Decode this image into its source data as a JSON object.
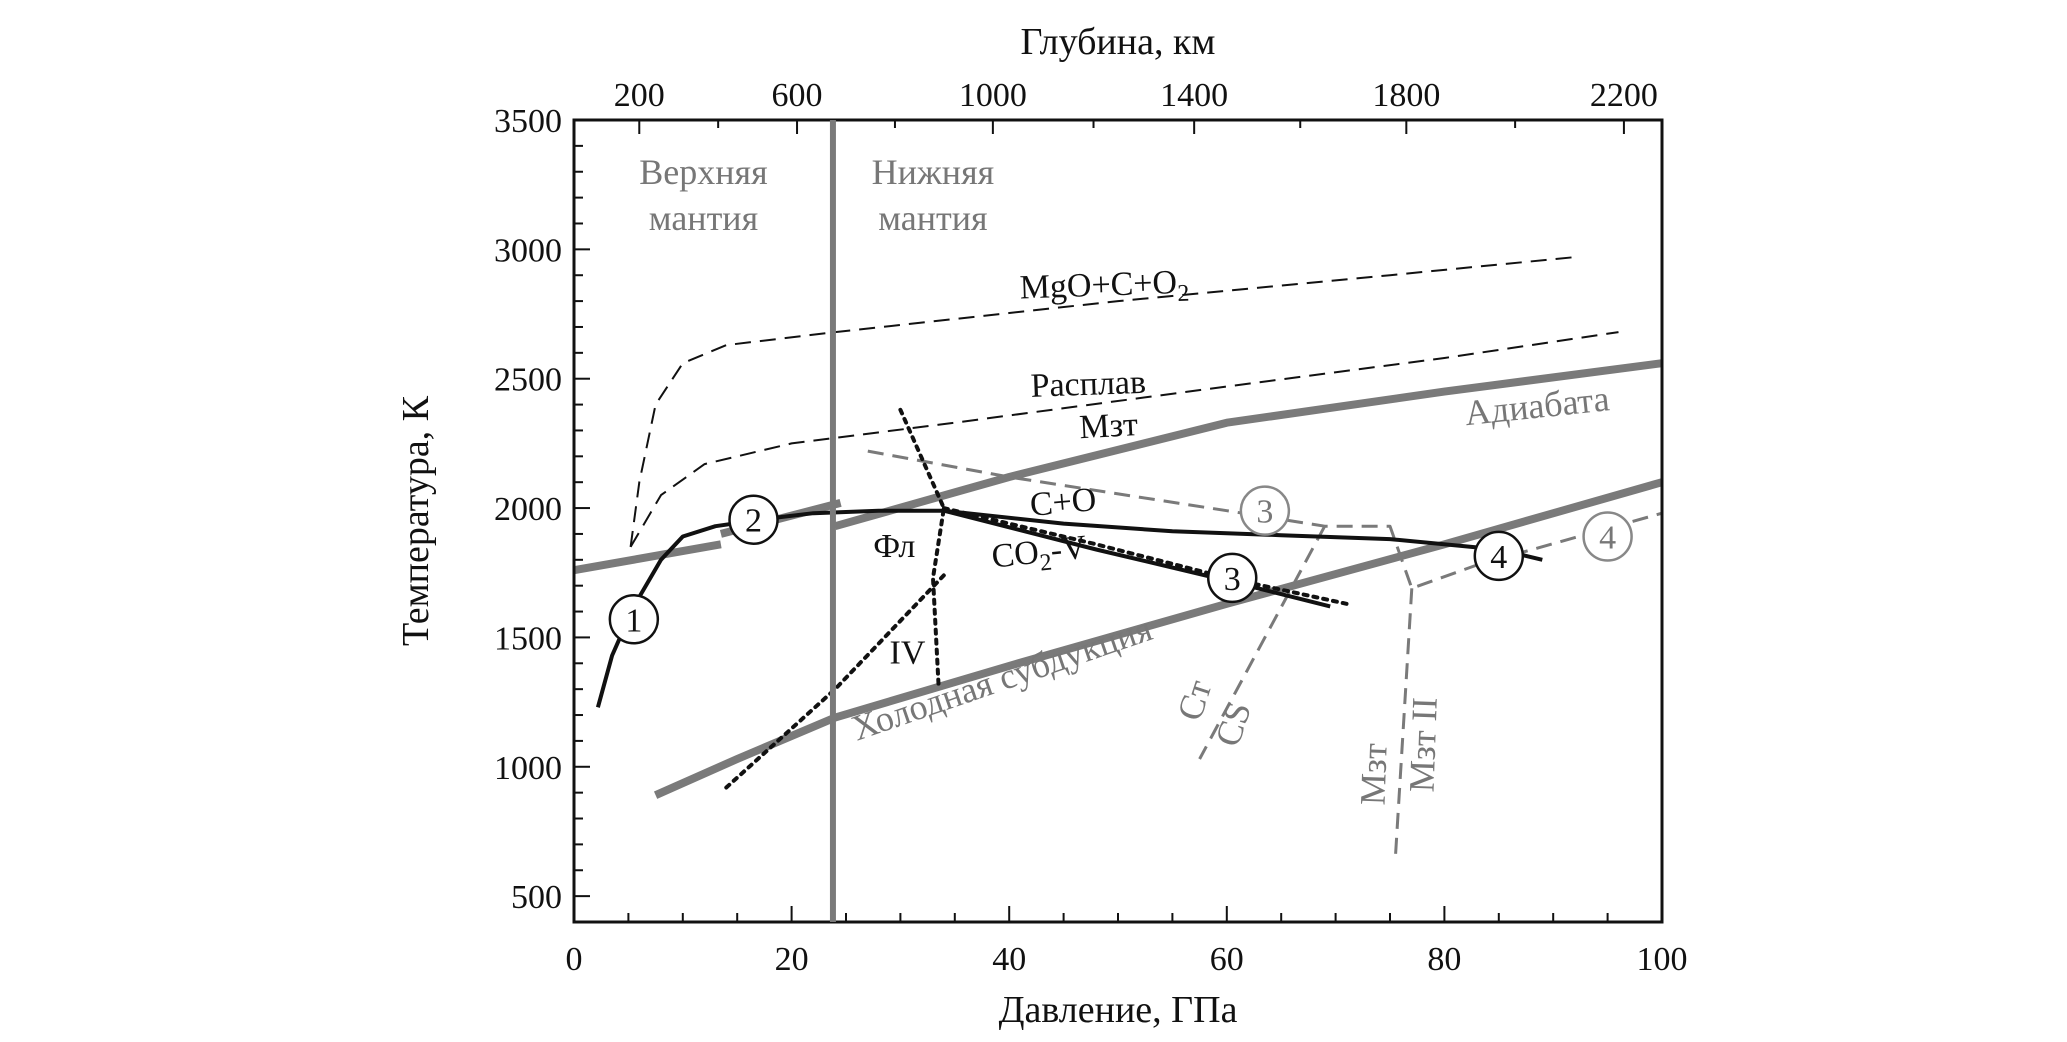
{
  "chart_data": {
    "type": "line",
    "xlabel": "Давление, ГПа",
    "ylabel": "Температура, К",
    "x2label": "Глубина, км",
    "xlim": [
      0,
      100
    ],
    "ylim": [
      400,
      3500
    ],
    "x_ticks": [
      0,
      20,
      40,
      60,
      80,
      100
    ],
    "y_ticks": [
      500,
      1000,
      1500,
      2000,
      2500,
      3000,
      3500
    ],
    "top_ticks": [
      {
        "label": "200",
        "x": 6
      },
      {
        "label": "600",
        "x": 20.5
      },
      {
        "label": "1000",
        "x": 38.5
      },
      {
        "label": "1400",
        "x": 57
      },
      {
        "label": "1800",
        "x": 76.5
      },
      {
        "label": "2200",
        "x": 96.5
      }
    ],
    "colors": {
      "black": "#111111",
      "gray": "#7a7a7a",
      "light_gray": "#888888"
    },
    "boundary": {
      "x": 23.8,
      "left_label": [
        "Верхняя",
        "мантия"
      ],
      "right_label": [
        "Нижняя",
        "мантия"
      ]
    },
    "series": [
      {
        "name": "MgO+C+O2",
        "color": "#111111",
        "style": "dashed",
        "width": 2,
        "points": [
          [
            5.2,
            1850
          ],
          [
            6,
            2100
          ],
          [
            7.5,
            2400
          ],
          [
            10,
            2560
          ],
          [
            14,
            2630
          ],
          [
            24,
            2680
          ],
          [
            50,
            2800
          ],
          [
            75,
            2900
          ],
          [
            92,
            2970
          ]
        ]
      },
      {
        "name": "Расплав",
        "color": "#111111",
        "style": "dashed",
        "width": 2,
        "points": [
          [
            5.2,
            1850
          ],
          [
            8,
            2050
          ],
          [
            12,
            2170
          ],
          [
            20,
            2250
          ],
          [
            35,
            2330
          ],
          [
            60,
            2470
          ],
          [
            80,
            2580
          ],
          [
            96,
            2680
          ]
        ]
      },
      {
        "name": "Адиабата",
        "color": "#7a7a7a",
        "style": "solid",
        "width": 8,
        "points": [
          [
            0,
            1760
          ],
          [
            13.5,
            1860
          ]
        ]
      },
      {
        "name": "Адиабата",
        "color": "#7a7a7a",
        "style": "solid",
        "width": 8,
        "points": [
          [
            13.5,
            1900
          ],
          [
            24.5,
            2020
          ]
        ]
      },
      {
        "name": "Адиабата",
        "color": "#7a7a7a",
        "style": "solid",
        "width": 8,
        "points": [
          [
            24,
            1930
          ],
          [
            40,
            2120
          ],
          [
            60,
            2330
          ],
          [
            80,
            2450
          ],
          [
            100,
            2560
          ]
        ]
      },
      {
        "name": "Холодная субдукция",
        "color": "#7a7a7a",
        "style": "solid",
        "width": 8,
        "points": [
          [
            7.5,
            890
          ],
          [
            15,
            1030
          ],
          [
            24,
            1190
          ],
          [
            40,
            1390
          ],
          [
            60,
            1630
          ],
          [
            80,
            1860
          ],
          [
            100,
            2100
          ]
        ]
      },
      {
        "name": "Мзт",
        "color": "#7a7a7a",
        "style": "dashed",
        "width": 3,
        "points": [
          [
            27,
            2220
          ],
          [
            40,
            2120
          ],
          [
            60,
            1990
          ],
          [
            69,
            1930
          ],
          [
            75,
            1930
          ],
          [
            77,
            1690
          ],
          [
            83,
            1780
          ],
          [
            100,
            1980
          ]
        ]
      },
      {
        "name": "Мзт II",
        "color": "#7a7a7a",
        "style": "dashed",
        "width": 3,
        "points": [
          [
            77,
            1690
          ],
          [
            75.5,
            650
          ]
        ]
      },
      {
        "name": "Ст CS",
        "color": "#7a7a7a",
        "style": "dashed",
        "width": 3,
        "points": [
          [
            69,
            1930
          ],
          [
            57.5,
            1030
          ]
        ]
      },
      {
        "name": "Фл",
        "color": "#111111",
        "style": "dotted",
        "width": 4,
        "points": [
          [
            30,
            2380
          ],
          [
            34,
            2000
          ],
          [
            33,
            1730
          ],
          [
            33.5,
            1320
          ]
        ]
      },
      {
        "name": "IV",
        "color": "#111111",
        "style": "dotted",
        "width": 4,
        "points": [
          [
            14,
            920
          ],
          [
            24,
            1300
          ],
          [
            34,
            1740
          ]
        ]
      },
      {
        "name": "CO2-V",
        "color": "#111111",
        "style": "dotted",
        "width": 4,
        "points": [
          [
            34,
            2000
          ],
          [
            48,
            1860
          ],
          [
            60,
            1730
          ],
          [
            71,
            1630
          ]
        ]
      },
      {
        "name": "C+O",
        "color": "#111111",
        "style": "solid",
        "width": 4,
        "points": [
          [
            2.2,
            1230
          ],
          [
            3.5,
            1430
          ],
          [
            5.5,
            1620
          ],
          [
            8,
            1800
          ],
          [
            10,
            1890
          ],
          [
            13,
            1930
          ],
          [
            18,
            1960
          ],
          [
            22,
            1980
          ],
          [
            28,
            1990
          ],
          [
            34,
            1990
          ],
          [
            45,
            1940
          ],
          [
            55,
            1910
          ],
          [
            65,
            1895
          ],
          [
            75,
            1880
          ],
          [
            85,
            1840
          ],
          [
            89,
            1800
          ]
        ]
      },
      {
        "name": "C+O",
        "color": "#111111",
        "style": "solid",
        "width": 4,
        "points": [
          [
            34,
            1990
          ],
          [
            48,
            1840
          ],
          [
            60,
            1720
          ],
          [
            69.5,
            1620
          ]
        ]
      }
    ],
    "annotations": [
      {
        "text": "MgO+C+O",
        "sub": "2",
        "x": 41,
        "y": 2810,
        "rotate": -2,
        "kind": "black"
      },
      {
        "text": "Расплав",
        "x": 42,
        "y": 2430,
        "rotate": -2,
        "kind": "black"
      },
      {
        "text": "Мзт",
        "x": 46.5,
        "y": 2270,
        "rotate": -3,
        "kind": "black"
      },
      {
        "text": "Адиабата",
        "x": 82,
        "y": 2320,
        "rotate": -6,
        "kind": "gray"
      },
      {
        "text": "C+O",
        "x": 42,
        "y": 1970,
        "rotate": -5,
        "kind": "black"
      },
      {
        "text": "CO",
        "sub": "2",
        "tail": "-V",
        "x": 38.5,
        "y": 1770,
        "rotate": -6,
        "kind": "black"
      },
      {
        "text": "Фл",
        "x": 27.5,
        "y": 1810,
        "rotate": 0,
        "kind": "black"
      },
      {
        "text": "IV",
        "x": 29,
        "y": 1400,
        "rotate": 0,
        "kind": "black"
      },
      {
        "text": "Холодная субдукция",
        "x": 26,
        "y": 1100,
        "rotate": -19,
        "kind": "gray"
      },
      {
        "text": "Cт",
        "x": 57.5,
        "y": 1170,
        "rotate": -72,
        "kind": "gray"
      },
      {
        "text": "CS",
        "x": 61,
        "y": 1070,
        "rotate": -72,
        "kind": "gray"
      },
      {
        "text": "Мзт",
        "x": 74.5,
        "y": 850,
        "rotate": -88,
        "kind": "gray"
      },
      {
        "text": "Мзт II",
        "x": 79,
        "y": 900,
        "rotate": -88,
        "kind": "gray"
      }
    ],
    "markers": [
      {
        "label": "1",
        "x": 5.5,
        "y": 1570,
        "kind": "black"
      },
      {
        "label": "2",
        "x": 16.5,
        "y": 1955,
        "kind": "black"
      },
      {
        "label": "3",
        "x": 60.5,
        "y": 1730,
        "kind": "black"
      },
      {
        "label": "4",
        "x": 85,
        "y": 1815,
        "kind": "black"
      },
      {
        "label": "3",
        "x": 63.5,
        "y": 1990,
        "kind": "gray"
      },
      {
        "label": "4",
        "x": 95,
        "y": 1890,
        "kind": "gray"
      }
    ]
  }
}
